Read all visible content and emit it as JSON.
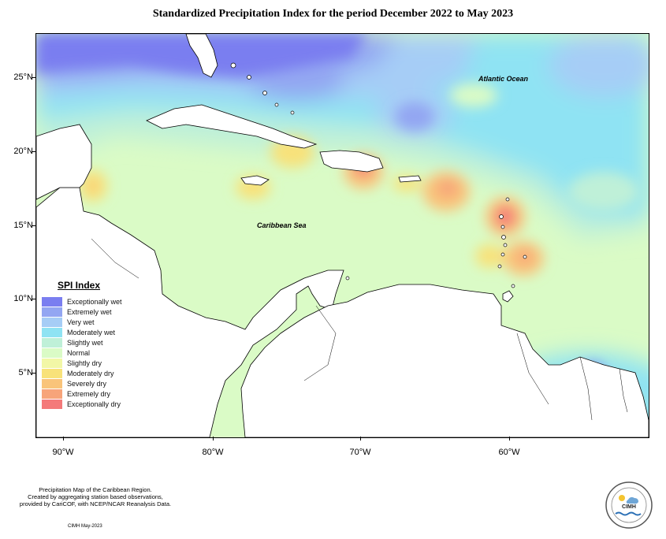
{
  "title": "Standardized Precipitation Index for the period December 2022 to May 2023",
  "axes": {
    "latitude_labels": [
      "25°N",
      "20°N",
      "15°N",
      "10°N",
      "5°N"
    ],
    "longitude_labels": [
      "90°W",
      "80°W",
      "70°W",
      "60°W"
    ]
  },
  "map_labels": {
    "atlantic": "Atlantic Ocean",
    "caribbean": "Caribbean Sea"
  },
  "legend": {
    "title": "SPI Index",
    "items": [
      {
        "label": "Exceptionally wet",
        "color": "#7a7ef0"
      },
      {
        "label": "Extremely wet",
        "color": "#93a6f2"
      },
      {
        "label": "Very wet",
        "color": "#a6cdf6"
      },
      {
        "label": "Moderately wet",
        "color": "#8fe3f3"
      },
      {
        "label": "Slightly wet",
        "color": "#bff0d8"
      },
      {
        "label": "Normal",
        "color": "#dafbc6"
      },
      {
        "label": "Slightly dry",
        "color": "#f2f7a6"
      },
      {
        "label": "Moderately dry",
        "color": "#f8e27a"
      },
      {
        "label": "Severely dry",
        "color": "#f9c47a"
      },
      {
        "label": "Extremely dry",
        "color": "#f7a47a"
      },
      {
        "label": "Exceptionally dry",
        "color": "#f47a7a"
      }
    ]
  },
  "footer": {
    "line1": "Precipitation Map of the Caribbean Region.",
    "line2": "Created by aggregating station based observations,",
    "line3": "provided by CariCOF, with NCEP/NCAR Reanalysis Data.",
    "credit": "CIMH May-2023"
  },
  "logo": {
    "text": "CIMH"
  }
}
